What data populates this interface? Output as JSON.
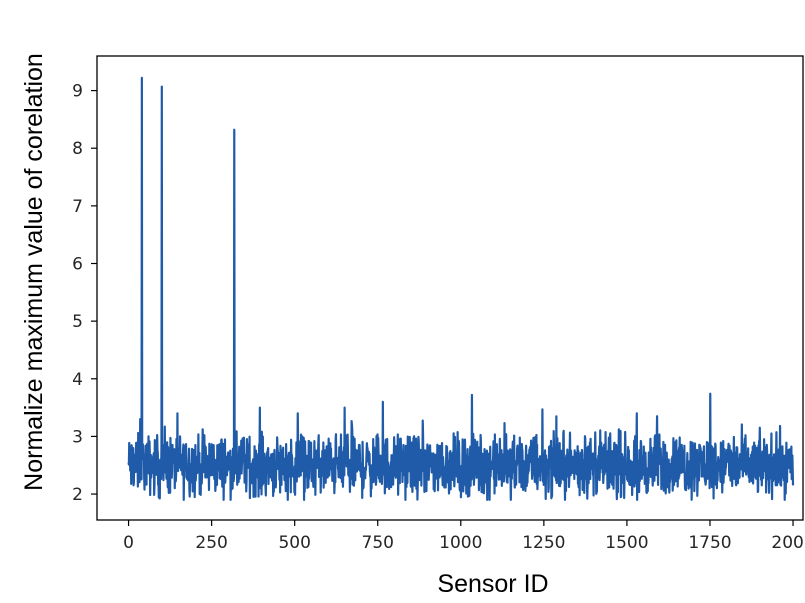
{
  "chart_data": {
    "type": "line",
    "title": "",
    "xlabel": "Sensor ID",
    "ylabel": "Normalize maximum value of corelation",
    "xlim": [
      -95,
      2030
    ],
    "ylim": [
      1.55,
      9.6
    ],
    "xticks": [
      0,
      250,
      500,
      750,
      1000,
      1250,
      1500,
      1750,
      2000
    ],
    "yticks": [
      2,
      3,
      4,
      5,
      6,
      7,
      8,
      9
    ],
    "xtick_labels": [
      "0",
      "250",
      "500",
      "750",
      "1000",
      "1250",
      "1500",
      "1750",
      "2000"
    ],
    "ytick_labels": [
      "2",
      "3",
      "4",
      "5",
      "6",
      "7",
      "8",
      "9"
    ],
    "grid": false,
    "legend": "none",
    "series": [
      {
        "color": "#1f5ba8",
        "baseline_range": [
          1.9,
          3.5
        ],
        "baseline_mean": 2.5,
        "x_range": [
          0,
          2000
        ],
        "n_points": 2000,
        "peaks": [
          {
            "x": 40,
            "y": 9.22
          },
          {
            "x": 100,
            "y": 9.07
          },
          {
            "x": 318,
            "y": 8.32
          },
          {
            "x": 1033,
            "y": 3.72
          },
          {
            "x": 1750,
            "y": 3.74
          },
          {
            "x": 765,
            "y": 3.6
          },
          {
            "x": 395,
            "y": 3.5
          },
          {
            "x": 650,
            "y": 3.5
          },
          {
            "x": 1245,
            "y": 3.47
          },
          {
            "x": 1590,
            "y": 3.35
          },
          {
            "x": 35,
            "y": 3.3
          },
          {
            "x": 1150,
            "y": 1.9
          },
          {
            "x": 1530,
            "y": 1.9
          }
        ]
      }
    ]
  }
}
